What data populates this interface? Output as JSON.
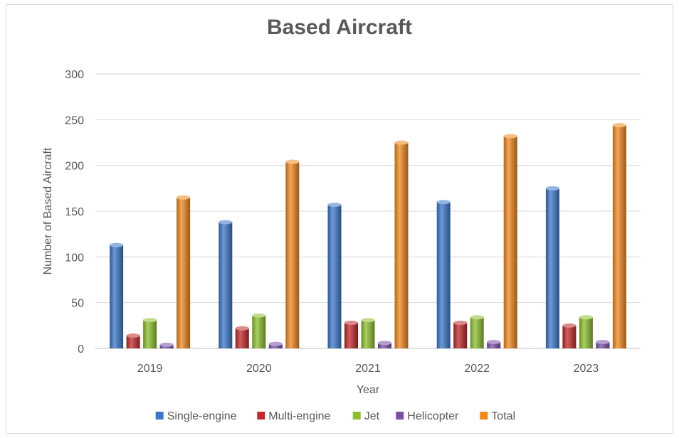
{
  "chart_data": {
    "type": "bar",
    "title": "Based Aircraft",
    "xlabel": "Year",
    "ylabel": "Number of Based Aircraft",
    "categories": [
      "2019",
      "2020",
      "2021",
      "2022",
      "2023"
    ],
    "ylim": [
      0,
      300
    ],
    "yticks": [
      0,
      50,
      100,
      150,
      200,
      250,
      300
    ],
    "grid": true,
    "legend_position": "bottom",
    "series": [
      {
        "name": "Single-engine",
        "color": "#3a78c9",
        "values": [
          113,
          138,
          157,
          160,
          175
        ]
      },
      {
        "name": "Multi-engine",
        "color": "#c0282a",
        "values": [
          14,
          22,
          28,
          28,
          25
        ]
      },
      {
        "name": "Jet",
        "color": "#8cbf2e",
        "values": [
          31,
          36,
          31,
          34,
          34
        ]
      },
      {
        "name": "Helicopter",
        "color": "#7a4fa8",
        "values": [
          4,
          5,
          6,
          7,
          7
        ]
      },
      {
        "name": "Total",
        "color": "#f0881e",
        "values": [
          165,
          204,
          225,
          232,
          244
        ]
      }
    ]
  }
}
